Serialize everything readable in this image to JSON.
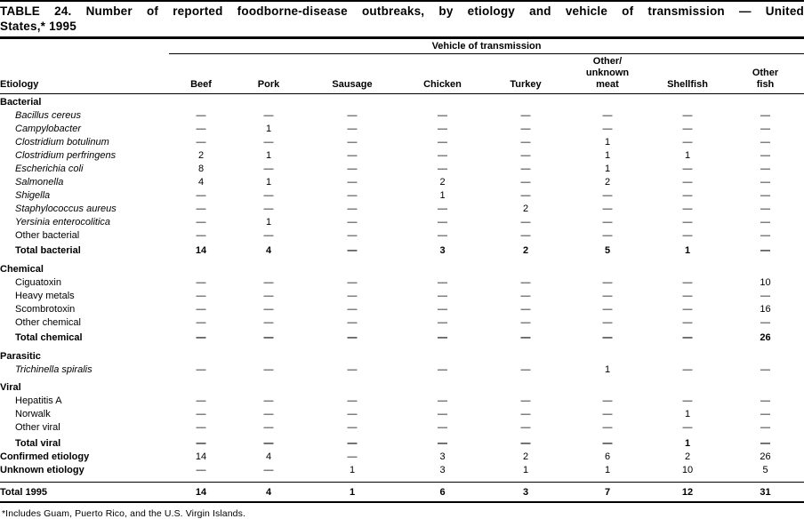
{
  "colors": {
    "text": "#000000",
    "background": "#ffffff",
    "rule": "#000000"
  },
  "title": {
    "line1": "TABLE 24. Number of reported foodborne-disease outbreaks, by etiology and vehicle of transmission — United",
    "line2": "States,* 1995"
  },
  "table": {
    "spanner": "Vehicle of transmission",
    "row_header": "Etiology",
    "columns": [
      "Beef",
      "Pork",
      "Sausage",
      "Chicken",
      "Turkey",
      "Other/\nunknown\nmeat",
      "Shellfish",
      "Other\nfish"
    ],
    "rows": [
      {
        "label": "Bacterial",
        "type": "section"
      },
      {
        "label": "Bacillus cereus",
        "type": "item",
        "italic": true,
        "values": [
          "—",
          "—",
          "—",
          "—",
          "—",
          "—",
          "—",
          "—"
        ]
      },
      {
        "label": "Campylobacter",
        "type": "item",
        "italic": true,
        "values": [
          "—",
          "1",
          "—",
          "—",
          "—",
          "—",
          "—",
          "—"
        ]
      },
      {
        "label": "Clostridium botulinum",
        "type": "item",
        "italic": true,
        "values": [
          "—",
          "—",
          "—",
          "—",
          "—",
          "1",
          "—",
          "—"
        ]
      },
      {
        "label": "Clostridium perfringens",
        "type": "item",
        "italic": true,
        "values": [
          "2",
          "1",
          "—",
          "—",
          "—",
          "1",
          "1",
          "—"
        ]
      },
      {
        "label": "Escherichia coli",
        "type": "item",
        "italic": true,
        "values": [
          "8",
          "—",
          "—",
          "—",
          "—",
          "1",
          "—",
          "—"
        ]
      },
      {
        "label": "Salmonella",
        "type": "item",
        "italic": true,
        "values": [
          "4",
          "1",
          "—",
          "2",
          "—",
          "2",
          "—",
          "—"
        ]
      },
      {
        "label": "Shigella",
        "type": "item",
        "italic": true,
        "values": [
          "—",
          "—",
          "—",
          "1",
          "—",
          "—",
          "—",
          "—"
        ]
      },
      {
        "label": "Staphylococcus aureus",
        "type": "item",
        "italic": true,
        "values": [
          "—",
          "—",
          "—",
          "—",
          "2",
          "—",
          "—",
          "—"
        ]
      },
      {
        "label": "Yersinia enterocolitica",
        "type": "item",
        "italic": true,
        "values": [
          "—",
          "1",
          "—",
          "—",
          "—",
          "—",
          "—",
          "—"
        ]
      },
      {
        "label": "Other bacterial",
        "type": "item",
        "values": [
          "—",
          "—",
          "—",
          "—",
          "—",
          "—",
          "—",
          "—"
        ]
      },
      {
        "label": "Total bacterial",
        "type": "total",
        "values": [
          "14",
          "4",
          "—",
          "3",
          "2",
          "5",
          "1",
          "—"
        ]
      },
      {
        "label": "Chemical",
        "type": "section"
      },
      {
        "label": "Ciguatoxin",
        "type": "item",
        "values": [
          "—",
          "—",
          "—",
          "—",
          "—",
          "—",
          "—",
          "10"
        ]
      },
      {
        "label": "Heavy metals",
        "type": "item",
        "values": [
          "—",
          "—",
          "—",
          "—",
          "—",
          "—",
          "—",
          "—"
        ]
      },
      {
        "label": "Scombrotoxin",
        "type": "item",
        "values": [
          "—",
          "—",
          "—",
          "—",
          "—",
          "—",
          "—",
          "16"
        ]
      },
      {
        "label": "Other chemical",
        "type": "item",
        "values": [
          "—",
          "—",
          "—",
          "—",
          "—",
          "—",
          "—",
          "—"
        ]
      },
      {
        "label": "Total chemical",
        "type": "total",
        "values": [
          "—",
          "—",
          "—",
          "—",
          "—",
          "—",
          "—",
          "26"
        ]
      },
      {
        "label": "Parasitic",
        "type": "section"
      },
      {
        "label": "Trichinella spiralis",
        "type": "item",
        "italic": true,
        "values": [
          "—",
          "—",
          "—",
          "—",
          "—",
          "1",
          "—",
          "—"
        ]
      },
      {
        "label": "Viral",
        "type": "section"
      },
      {
        "label": "Hepatitis A",
        "type": "item",
        "values": [
          "—",
          "—",
          "—",
          "—",
          "—",
          "—",
          "—",
          "—"
        ]
      },
      {
        "label": "Norwalk",
        "type": "item",
        "values": [
          "—",
          "—",
          "—",
          "—",
          "—",
          "—",
          "1",
          "—"
        ]
      },
      {
        "label": "Other viral",
        "type": "item",
        "values": [
          "—",
          "—",
          "—",
          "—",
          "—",
          "—",
          "—",
          "—"
        ]
      },
      {
        "label": "Total viral",
        "type": "total",
        "values": [
          "—",
          "—",
          "—",
          "—",
          "—",
          "—",
          "1",
          "—"
        ]
      },
      {
        "label": "Confirmed etiology",
        "type": "summary",
        "values": [
          "14",
          "4",
          "—",
          "3",
          "2",
          "6",
          "2",
          "26"
        ]
      },
      {
        "label": "Unknown etiology",
        "type": "summary",
        "gap_after": true,
        "values": [
          "—",
          "—",
          "1",
          "3",
          "1",
          "1",
          "10",
          "5"
        ]
      },
      {
        "label": "Total 1995",
        "type": "grand",
        "values": [
          "14",
          "4",
          "1",
          "6",
          "3",
          "7",
          "12",
          "31"
        ]
      }
    ]
  },
  "footnote": "*Includes Guam, Puerto Rico, and the U.S. Virgin Islands."
}
